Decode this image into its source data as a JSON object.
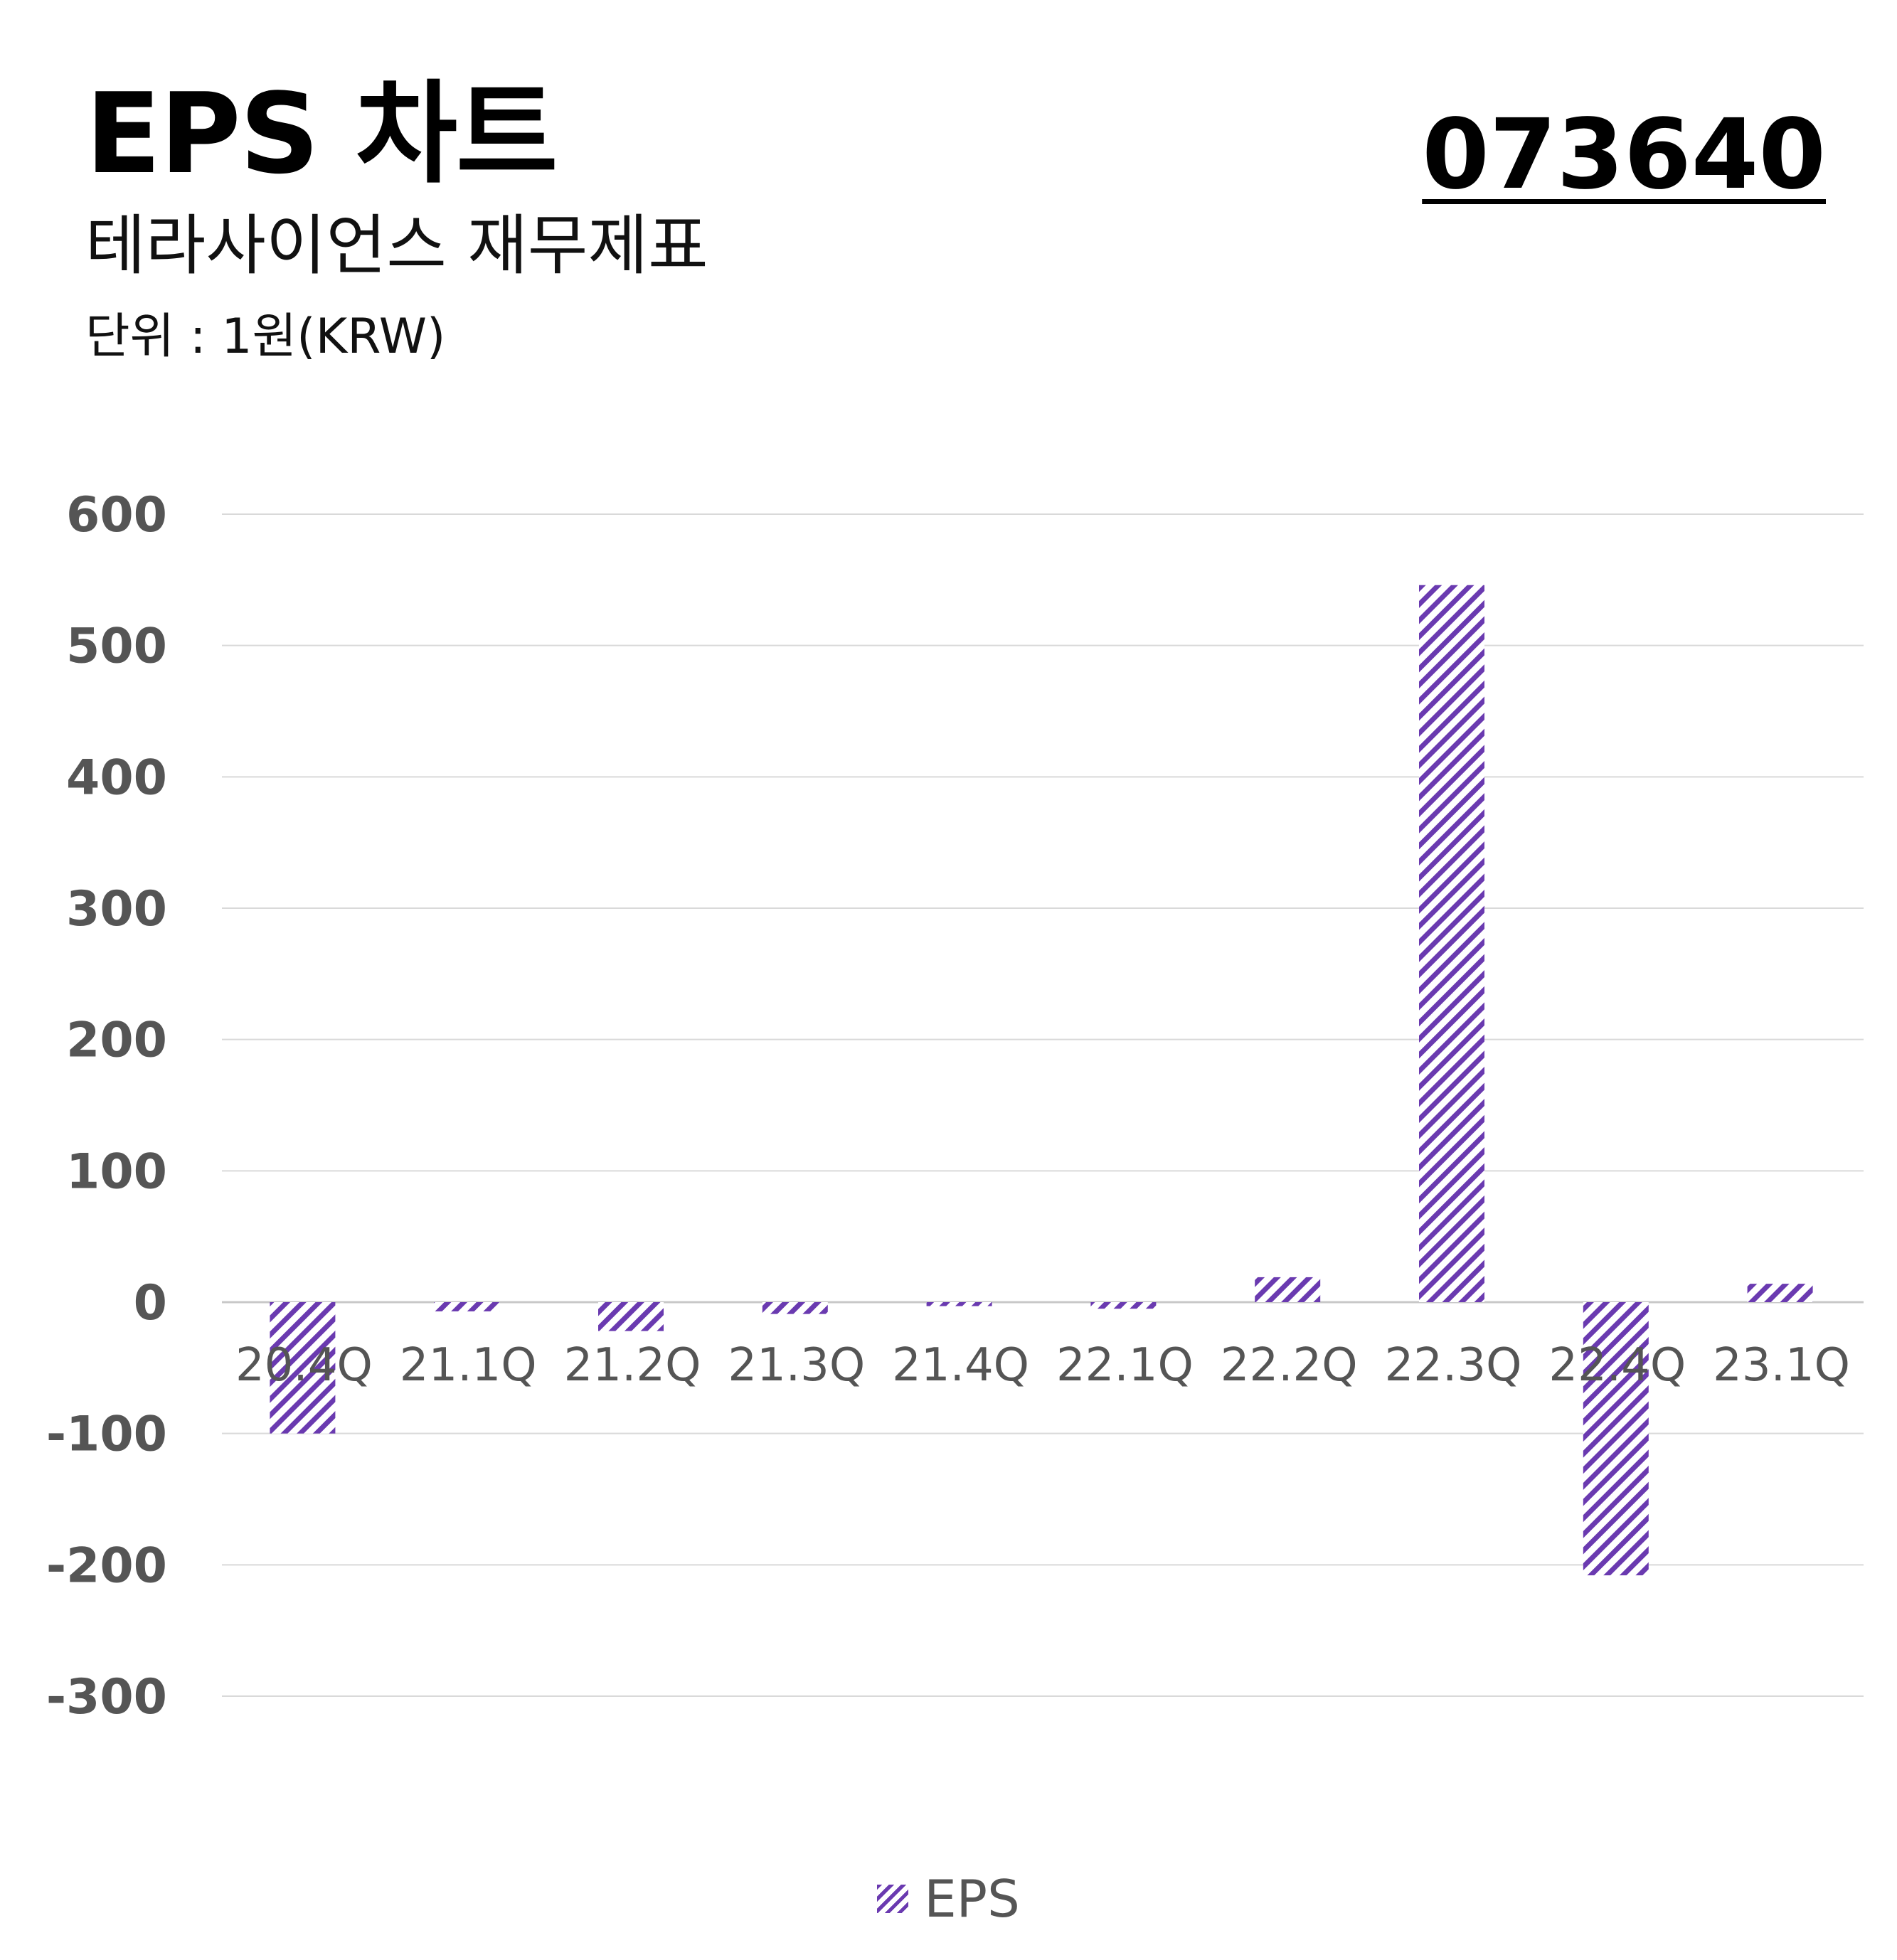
{
  "header": {
    "title": "EPS 차트",
    "subtitle": "테라사이언스 재무제표",
    "unit": "단위 : 1원(KRW)",
    "code": "073640"
  },
  "colors": {
    "bar": "#6a3ab0",
    "grid": "#d9d9d9",
    "tick": "#555555"
  },
  "chart_data": {
    "type": "bar",
    "categories": [
      "20.4Q",
      "21.1Q",
      "21.2Q",
      "21.3Q",
      "21.4Q",
      "22.1Q",
      "22.2Q",
      "22.3Q",
      "22.4Q",
      "23.1Q"
    ],
    "series": [
      {
        "name": "EPS",
        "values": [
          -100,
          -7,
          -22,
          -9,
          -3,
          -5,
          19,
          546,
          -208,
          14
        ]
      }
    ],
    "ylim": [
      -300,
      600
    ],
    "yticks": [
      600,
      500,
      400,
      300,
      200,
      100,
      0,
      -100,
      -200,
      -300
    ],
    "grid": true,
    "legend": "bottom-center",
    "pattern": "diagonal-hatch"
  }
}
